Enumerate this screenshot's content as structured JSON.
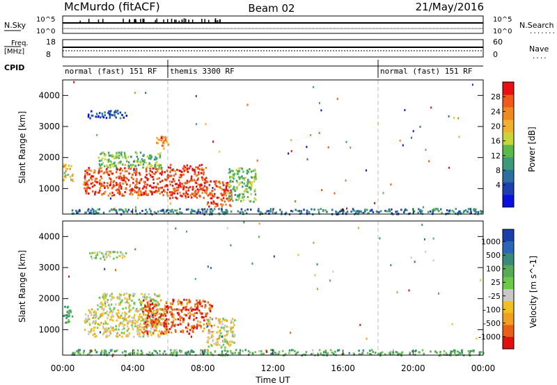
{
  "header": {
    "station": "McMurdo (fitACF)",
    "beam": "Beam 02",
    "date": "21/May/2016"
  },
  "noise_panel": {
    "left_label": "N.Sky",
    "left_ticks": [
      "10^5",
      "10^0"
    ],
    "right_label": "N.Search",
    "right_ticks": [
      "10^5",
      "10^0"
    ],
    "right_marker": "........"
  },
  "freq_panel": {
    "left_label_top": "Freq.",
    "left_label_bottom": "[MHz]",
    "left_ticks": [
      "18",
      "8"
    ],
    "right_label": "Nave",
    "right_ticks": [
      "60",
      "0"
    ],
    "right_marker": "...."
  },
  "cpid": {
    "label": "CPID",
    "segments": [
      {
        "label": "normal (fast) 151 RF",
        "start_h": 0,
        "end_h": 6
      },
      {
        "label": "themis 3300 RF",
        "start_h": 6,
        "end_h": 18
      },
      {
        "label": "normal (fast) 151 RF",
        "start_h": 18,
        "end_h": 24
      }
    ]
  },
  "x_axis": {
    "label": "Time UT",
    "ticks": [
      "00:00",
      "04:00",
      "08:00",
      "12:00",
      "16:00",
      "20:00",
      "00:00"
    ]
  },
  "chart_data": [
    {
      "type": "heatmap",
      "ylabel": "Slant Range [km]",
      "xlim": [
        0,
        24
      ],
      "ylim": [
        180,
        4500
      ],
      "yticks": [
        1000,
        2000,
        3000,
        4000
      ],
      "colorbar": {
        "label": "Power [dB]",
        "ticks": [
          "4",
          "8",
          "12",
          "16",
          "20",
          "24",
          "28"
        ],
        "colors": [
          "#0b10e0",
          "#1e3fb0",
          "#2a6fa0",
          "#3a9a7a",
          "#5bb84a",
          "#c8d43a",
          "#f0b030",
          "#f08a20",
          "#f05a18",
          "#e81010"
        ]
      },
      "blobs": [
        {
          "t0": 0.0,
          "t1": 0.55,
          "r0": 1250,
          "r1": 1800,
          "v": 0.6
        },
        {
          "t0": 1.2,
          "t1": 5.9,
          "r0": 800,
          "r1": 1700,
          "v": 0.92
        },
        {
          "t0": 2.0,
          "t1": 5.6,
          "r0": 1700,
          "r1": 2200,
          "v": 0.45
        },
        {
          "t0": 5.9,
          "t1": 8.2,
          "r0": 700,
          "r1": 1800,
          "v": 0.95
        },
        {
          "t0": 8.2,
          "t1": 9.6,
          "r0": 450,
          "r1": 1300,
          "v": 0.9
        },
        {
          "t0": 9.4,
          "t1": 11.0,
          "r0": 600,
          "r1": 1700,
          "v": 0.45
        },
        {
          "t0": 0.5,
          "t1": 24.0,
          "r0": 200,
          "r1": 380,
          "v": 0.25
        },
        {
          "t0": 1.4,
          "t1": 3.6,
          "r0": 3300,
          "r1": 3550,
          "v": 0.15
        },
        {
          "t0": 5.3,
          "t1": 6.0,
          "r0": 2300,
          "r1": 2700,
          "v": 0.8
        }
      ]
    },
    {
      "type": "heatmap",
      "ylabel": "Slant Range [km]",
      "xlim": [
        0,
        24
      ],
      "ylim": [
        180,
        4500
      ],
      "yticks": [
        1000,
        2000,
        3000,
        4000
      ],
      "colorbar": {
        "label": "Velocity [m s^-1]",
        "ticks": [
          "1000",
          "500",
          "100",
          "25",
          "-25",
          "-100",
          "-500",
          "-1000"
        ],
        "colors": [
          "#1a3fa8",
          "#2a66b8",
          "#3a8a7a",
          "#58a958",
          "#6cc84a",
          "#c8c8c8",
          "#f0c020",
          "#f0a020",
          "#e86018",
          "#e01010"
        ]
      },
      "blobs": [
        {
          "t0": 0.0,
          "t1": 0.55,
          "r0": 1250,
          "r1": 1800,
          "v": 0.3
        },
        {
          "t0": 1.2,
          "t1": 5.9,
          "r0": 800,
          "r1": 1700,
          "v": 0.6
        },
        {
          "t0": 2.0,
          "t1": 5.6,
          "r0": 1700,
          "r1": 2200,
          "v": 0.55
        },
        {
          "t0": 4.5,
          "t1": 8.5,
          "r0": 900,
          "r1": 2000,
          "v": 0.9
        },
        {
          "t0": 8.2,
          "t1": 9.8,
          "r0": 450,
          "r1": 1400,
          "v": 0.6
        },
        {
          "t0": 0.5,
          "t1": 24.0,
          "r0": 200,
          "r1": 380,
          "v": 0.35
        },
        {
          "t0": 1.4,
          "t1": 3.6,
          "r0": 3300,
          "r1": 3550,
          "v": 0.5
        }
      ]
    }
  ]
}
